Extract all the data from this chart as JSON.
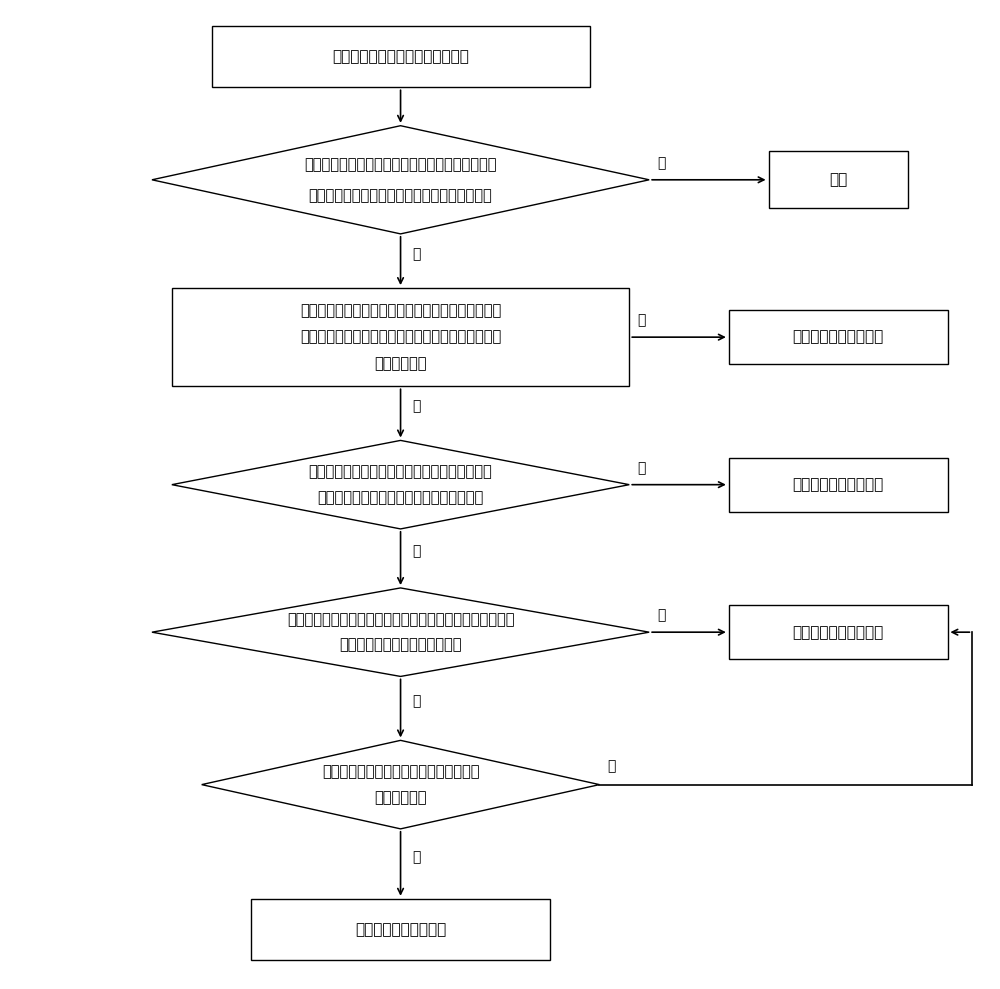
{
  "bg_color": "#ffffff",
  "nodes": {
    "start": {
      "lines": [
        "获取环境温度和循环水泵停机时间"
      ]
    },
    "d1": {
      "lines": [
        "判断所述环境温度是否小于等于环境温度阈值，所",
        "述循环水泵停机时间是否达到防冻时间间隔阈值"
      ]
    },
    "standby": {
      "lines": [
        "待机"
      ]
    },
    "r2": {
      "lines": [
        "控制循环水泵运行，经过第一设定时间后获取循环水",
        "温度，判断所述循环水温度是否小于等于第一循环水",
        "防冻温度阈值"
      ]
    },
    "mode1": {
      "lines": [
        "采用压机防冻运行模式"
      ]
    },
    "d2": {
      "lines": [
        "判断所述循环水温度是否大于第一循环水防冻温",
        "度阈值，小于等于第二循环水防冻温度阈值"
      ]
    },
    "mode2": {
      "lines": [
        "采用辅热防冻运行模式"
      ]
    },
    "d3": {
      "lines": [
        "判断所述循环水温度是否大于第二循环水防冻温度阈值，小",
        "于等于第三循环水防冻温度阈值"
      ]
    },
    "mode3": {
      "lines": [
        "采用水泵防冻运行模式"
      ]
    },
    "d4": {
      "lines": [
        "判断所述循环水温度是否大于第三循环水",
        "防冻温度阈值"
      ]
    },
    "end": {
      "lines": [
        "控制循环水泵停止运行"
      ]
    }
  },
  "labels": {
    "yes": "是",
    "no": "否"
  }
}
